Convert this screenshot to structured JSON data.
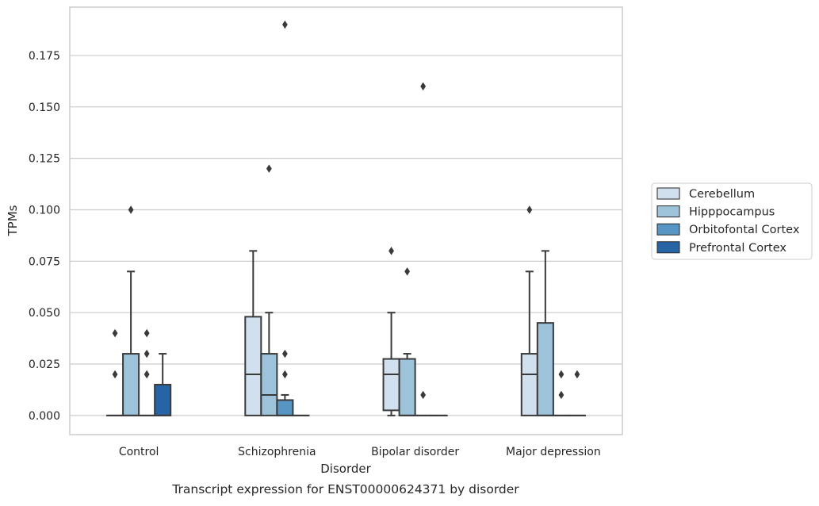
{
  "chart_data": {
    "type": "box",
    "xlabel": "Disorder",
    "ylabel": "TPMs",
    "caption": "Transcript expression for ENST00000624371 by disorder",
    "categories": [
      "Control",
      "Schizophrenia",
      "Bipolar disorder",
      "Major depression"
    ],
    "ylim": [
      -0.0093,
      0.1985
    ],
    "yticks": [
      0.0,
      0.025,
      0.05,
      0.075,
      0.1,
      0.125,
      0.15,
      0.175
    ],
    "ytick_labels": [
      "0.000",
      "0.025",
      "0.050",
      "0.075",
      "0.100",
      "0.125",
      "0.150",
      "0.175"
    ],
    "grid": "horizontal",
    "legend": {
      "placement": "right",
      "entries": [
        "Cerebellum",
        "Hipppocampus",
        "Orbitofontal Cortex",
        "Prefrontal Cortex"
      ]
    },
    "colors": {
      "Cerebellum": "#d1e0ef",
      "Hipppocampus": "#9cc3da",
      "Orbitofontal Cortex": "#5796c4",
      "Prefrontal Cortex": "#2664a6",
      "line": "#3a3a3a",
      "grid": "#cccccc",
      "spine": "#cccccc"
    },
    "series": [
      {
        "name": "Cerebellum",
        "boxes": [
          {
            "q1": 0.0,
            "median": 0.0,
            "q3": 0.0,
            "whisker_low": 0.0,
            "whisker_high": 0.0,
            "outliers": [
              0.02,
              0.04
            ]
          },
          {
            "q1": 0.0,
            "median": 0.02,
            "q3": 0.048,
            "whisker_low": 0.0,
            "whisker_high": 0.08,
            "outliers": []
          },
          {
            "q1": 0.0025,
            "median": 0.02,
            "q3": 0.0275,
            "whisker_low": 0.0,
            "whisker_high": 0.05,
            "outliers": [
              0.08
            ]
          },
          {
            "q1": 0.0,
            "median": 0.02,
            "q3": 0.03,
            "whisker_low": 0.0,
            "whisker_high": 0.07,
            "outliers": [
              0.1
            ]
          }
        ]
      },
      {
        "name": "Hipppocampus",
        "boxes": [
          {
            "q1": 0.0,
            "median": 0.0,
            "q3": 0.03,
            "whisker_low": 0.0,
            "whisker_high": 0.07,
            "outliers": [
              0.1
            ]
          },
          {
            "q1": 0.0,
            "median": 0.01,
            "q3": 0.03,
            "whisker_low": 0.0,
            "whisker_high": 0.05,
            "outliers": [
              0.12
            ]
          },
          {
            "q1": 0.0,
            "median": 0.0,
            "q3": 0.0275,
            "whisker_low": 0.0,
            "whisker_high": 0.03,
            "outliers": [
              0.07
            ]
          },
          {
            "q1": 0.0,
            "median": 0.0,
            "q3": 0.045,
            "whisker_low": 0.0,
            "whisker_high": 0.08,
            "outliers": []
          }
        ]
      },
      {
        "name": "Orbitofontal Cortex",
        "boxes": [
          {
            "q1": 0.0,
            "median": 0.0,
            "q3": 0.0,
            "whisker_low": 0.0,
            "whisker_high": 0.0,
            "outliers": [
              0.02,
              0.03,
              0.04
            ]
          },
          {
            "q1": 0.0,
            "median": 0.0,
            "q3": 0.0075,
            "whisker_low": 0.0,
            "whisker_high": 0.01,
            "outliers": [
              0.02,
              0.03,
              0.19
            ]
          },
          {
            "q1": 0.0,
            "median": 0.0,
            "q3": 0.0,
            "whisker_low": 0.0,
            "whisker_high": 0.0,
            "outliers": [
              0.01,
              0.16
            ]
          },
          {
            "q1": 0.0,
            "median": 0.0,
            "q3": 0.0,
            "whisker_low": 0.0,
            "whisker_high": 0.0,
            "outliers": [
              0.01,
              0.02
            ]
          }
        ]
      },
      {
        "name": "Prefrontal Cortex",
        "boxes": [
          {
            "q1": 0.0,
            "median": 0.0,
            "q3": 0.015,
            "whisker_low": 0.0,
            "whisker_high": 0.03,
            "outliers": []
          },
          {
            "q1": 0.0,
            "median": 0.0,
            "q3": 0.0,
            "whisker_low": 0.0,
            "whisker_high": 0.0,
            "outliers": []
          },
          {
            "q1": 0.0,
            "median": 0.0,
            "q3": 0.0,
            "whisker_low": 0.0,
            "whisker_high": 0.0,
            "outliers": []
          },
          {
            "q1": 0.0,
            "median": 0.0,
            "q3": 0.0,
            "whisker_low": 0.0,
            "whisker_high": 0.0,
            "outliers": [
              0.02
            ]
          }
        ]
      }
    ]
  }
}
